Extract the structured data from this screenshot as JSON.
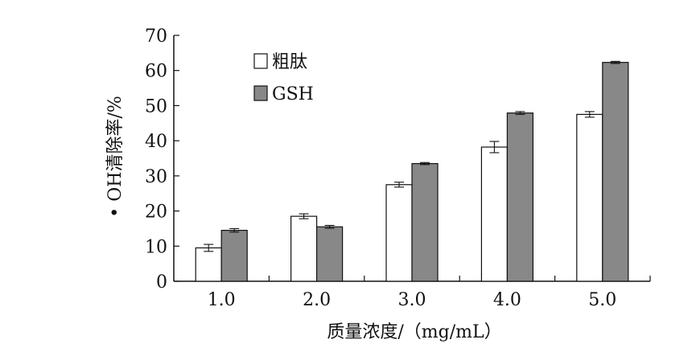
{
  "chart_data": {
    "type": "bar",
    "categories": [
      "1.0",
      "2.0",
      "3.0",
      "4.0",
      "5.0"
    ],
    "series": [
      {
        "name": "粗肽",
        "values": [
          9.5,
          18.5,
          27.5,
          38.2,
          47.5
        ],
        "errors": [
          1.0,
          0.7,
          0.7,
          1.6,
          0.8
        ],
        "color": "#ffffff"
      },
      {
        "name": "GSH",
        "values": [
          14.5,
          15.5,
          33.5,
          47.9,
          62.3
        ],
        "errors": [
          0.5,
          0.4,
          0.3,
          0.4,
          0.3
        ],
        "color": "#888888"
      }
    ],
    "xlabel": "质量浓度/（mg/mL）",
    "ylabel": "• OH清除率/%",
    "yticks": [
      0,
      10,
      20,
      30,
      40,
      50,
      60,
      70
    ],
    "ylim": [
      0,
      70
    ],
    "legend_position": "top-left",
    "grid": false
  }
}
